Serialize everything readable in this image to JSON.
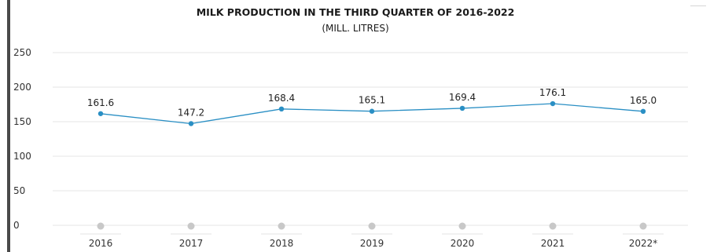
{
  "chart_data": {
    "type": "line",
    "title": "MILK PRODUCTION IN THE THIRD QUARTER OF 2016-2022",
    "subtitle": "(MILL. LITRES)",
    "xlabel": "",
    "ylabel": "",
    "categories": [
      "2016",
      "2017",
      "2018",
      "2019",
      "2020",
      "2021",
      "2022*"
    ],
    "series": [
      {
        "values": [
          161.6,
          147.2,
          168.4,
          165.1,
          169.4,
          176.1,
          165.0
        ]
      }
    ],
    "data_labels": [
      "161.6",
      "147.2",
      "168.4",
      "165.1",
      "169.4",
      "176.1",
      "165.0"
    ],
    "ylim": [
      0,
      250
    ],
    "yticks": [
      0,
      50,
      100,
      150,
      200,
      250
    ],
    "grid": true,
    "legend": "none",
    "colors": {
      "line": "#2a8fc4",
      "grid": "#e6e6e6",
      "baseline_marker": "#c8c8c8"
    }
  }
}
